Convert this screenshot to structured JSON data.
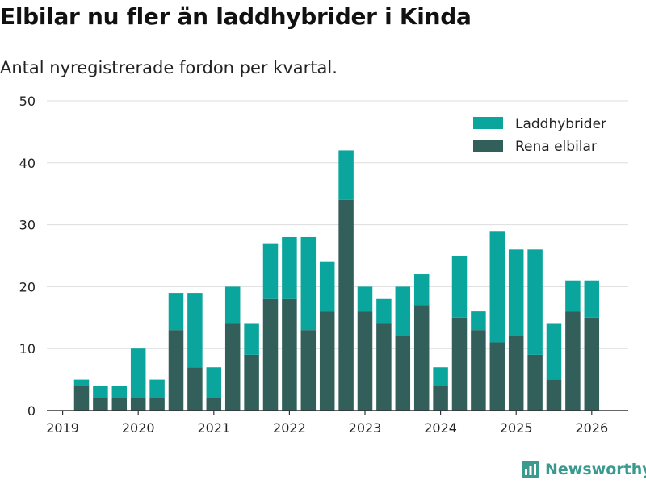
{
  "title": "Elbilar nu fler än laddhybrider i Kinda",
  "subtitle": "Antal nyregistrerade fordon per kvartal.",
  "brand": "Newsworthy",
  "colors": {
    "laddhybrider": "#0aa59d",
    "rena_elbilar": "#325f5a",
    "grid": "#dddddd",
    "axis": "#333333",
    "brand": "#3a9a90"
  },
  "chart_data": {
    "type": "bar",
    "stacked": true,
    "categories": [
      "2019 Q2",
      "2019 Q3",
      "2019 Q4",
      "2020 Q1",
      "2020 Q2",
      "2020 Q3",
      "2020 Q4",
      "2021 Q1",
      "2021 Q2",
      "2021 Q3",
      "2021 Q4",
      "2022 Q1",
      "2022 Q2",
      "2022 Q3",
      "2022 Q4",
      "2023 Q1",
      "2023 Q2",
      "2023 Q3",
      "2023 Q4",
      "2024 Q1",
      "2024 Q2",
      "2024 Q3",
      "2024 Q4",
      "2025 Q1",
      "2025 Q2",
      "2025 Q3",
      "2025 Q4",
      "2026 Q1"
    ],
    "series": [
      {
        "name": "Rena elbilar",
        "values": [
          4,
          2,
          2,
          2,
          2,
          13,
          7,
          2,
          14,
          9,
          18,
          18,
          13,
          16,
          34,
          16,
          14,
          12,
          17,
          4,
          15,
          13,
          11,
          12,
          9,
          5,
          16,
          15
        ]
      },
      {
        "name": "Laddhybrider",
        "values": [
          1,
          2,
          2,
          8,
          3,
          6,
          12,
          5,
          6,
          5,
          9,
          10,
          15,
          8,
          8,
          4,
          4,
          8,
          5,
          3,
          10,
          3,
          18,
          14,
          17,
          9,
          5,
          6
        ]
      }
    ],
    "yticks": [
      0,
      10,
      20,
      30,
      40,
      50
    ],
    "ylim": [
      0,
      50
    ],
    "xticks": [
      "2019",
      "2020",
      "2021",
      "2022",
      "2023",
      "2024",
      "2025",
      "2026"
    ],
    "legend": [
      {
        "label": "Laddhybrider"
      },
      {
        "label": "Rena elbilar"
      }
    ],
    "xlabel": "",
    "ylabel": ""
  }
}
